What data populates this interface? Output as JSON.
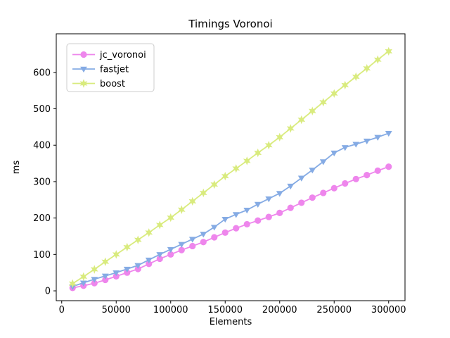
{
  "chart_data": {
    "type": "line",
    "title": "Timings Voronoi",
    "xlabel": "Elements",
    "ylabel": "ms",
    "grid": false,
    "legend_position": "upper left",
    "xlim": [
      -5000,
      315000
    ],
    "ylim": [
      -27,
      706
    ],
    "x_ticks": [
      0,
      50000,
      100000,
      150000,
      200000,
      250000,
      300000
    ],
    "y_ticks": [
      0,
      100,
      200,
      300,
      400,
      500,
      600
    ],
    "x": [
      10000,
      20000,
      30000,
      40000,
      50000,
      60000,
      70000,
      80000,
      90000,
      100000,
      110000,
      120000,
      130000,
      140000,
      150000,
      160000,
      170000,
      180000,
      190000,
      200000,
      210000,
      220000,
      230000,
      240000,
      250000,
      260000,
      270000,
      280000,
      290000,
      300000
    ],
    "series": [
      {
        "name": "jc_voronoi",
        "color": "#ee86ec",
        "marker": "circle",
        "values": [
          8,
          14,
          21,
          30,
          40,
          50,
          60,
          74,
          88,
          100,
          112,
          123,
          134,
          147,
          160,
          172,
          183,
          193,
          203,
          214,
          228,
          242,
          256,
          269,
          282,
          295,
          307,
          318,
          330,
          341
        ]
      },
      {
        "name": "fastjet",
        "color": "#85abe4",
        "marker": "triangle-down",
        "values": [
          12,
          22,
          32,
          41,
          50,
          60,
          70,
          85,
          100,
          114,
          128,
          142,
          156,
          175,
          197,
          210,
          222,
          238,
          253,
          268,
          288,
          310,
          332,
          355,
          379,
          394,
          403,
          412,
          422,
          433
        ]
      },
      {
        "name": "boost",
        "color": "#d9eb7e",
        "marker": "star",
        "values": [
          20,
          39,
          59,
          80,
          100,
          120,
          140,
          160,
          181,
          201,
          223,
          246,
          269,
          292,
          315,
          336,
          357,
          379,
          400,
          422,
          446,
          470,
          494,
          518,
          542,
          565,
          588,
          611,
          635,
          658
        ]
      }
    ]
  },
  "style": {
    "spine_color": "#000000",
    "legend_border_color": "#cccccc",
    "legend_bg_color": "#ffffff",
    "text_color": "#000000"
  }
}
